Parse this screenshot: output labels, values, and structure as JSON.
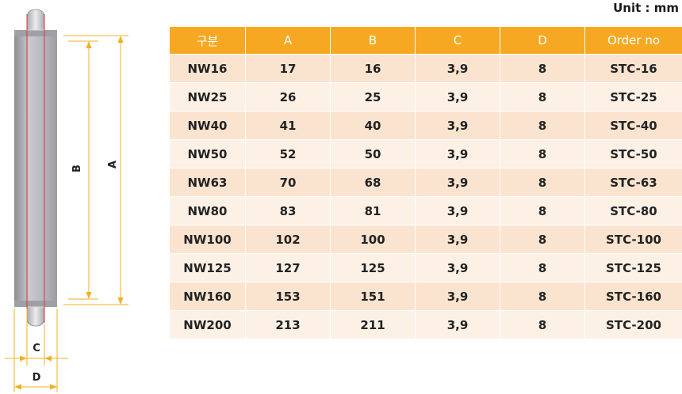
{
  "unit_label": "Unit : mm",
  "drawing": {
    "label_a": "A",
    "label_b": "B",
    "label_c": "C",
    "label_d": "D",
    "colors": {
      "ring": "#b8b9bf",
      "dim": "#f2b01e",
      "center": "#e0303a"
    }
  },
  "table": {
    "headers": [
      "구분",
      "A",
      "B",
      "C",
      "D",
      "Order  no"
    ],
    "rows": [
      [
        "NW16",
        "17",
        "16",
        "3,9",
        "8",
        "STC-16"
      ],
      [
        "NW25",
        "26",
        "25",
        "3,9",
        "8",
        "STC-25"
      ],
      [
        "NW40",
        "41",
        "40",
        "3,9",
        "8",
        "STC-40"
      ],
      [
        "NW50",
        "52",
        "50",
        "3,9",
        "8",
        "STC-50"
      ],
      [
        "NW63",
        "70",
        "68",
        "3,9",
        "8",
        "STC-63"
      ],
      [
        "NW80",
        "83",
        "81",
        "3,9",
        "8",
        "STC-80"
      ],
      [
        "NW100",
        "102",
        "100",
        "3,9",
        "8",
        "STC-100"
      ],
      [
        "NW125",
        "127",
        "125",
        "3,9",
        "8",
        "STC-125"
      ],
      [
        "NW160",
        "153",
        "151",
        "3,9",
        "8",
        "STC-160"
      ],
      [
        "NW200",
        "213",
        "211",
        "3,9",
        "8",
        "STC-200"
      ]
    ],
    "colors": {
      "header": "#f7a823",
      "row_odd": "#fbe4cf",
      "row_even": "#fdf1e6"
    }
  }
}
